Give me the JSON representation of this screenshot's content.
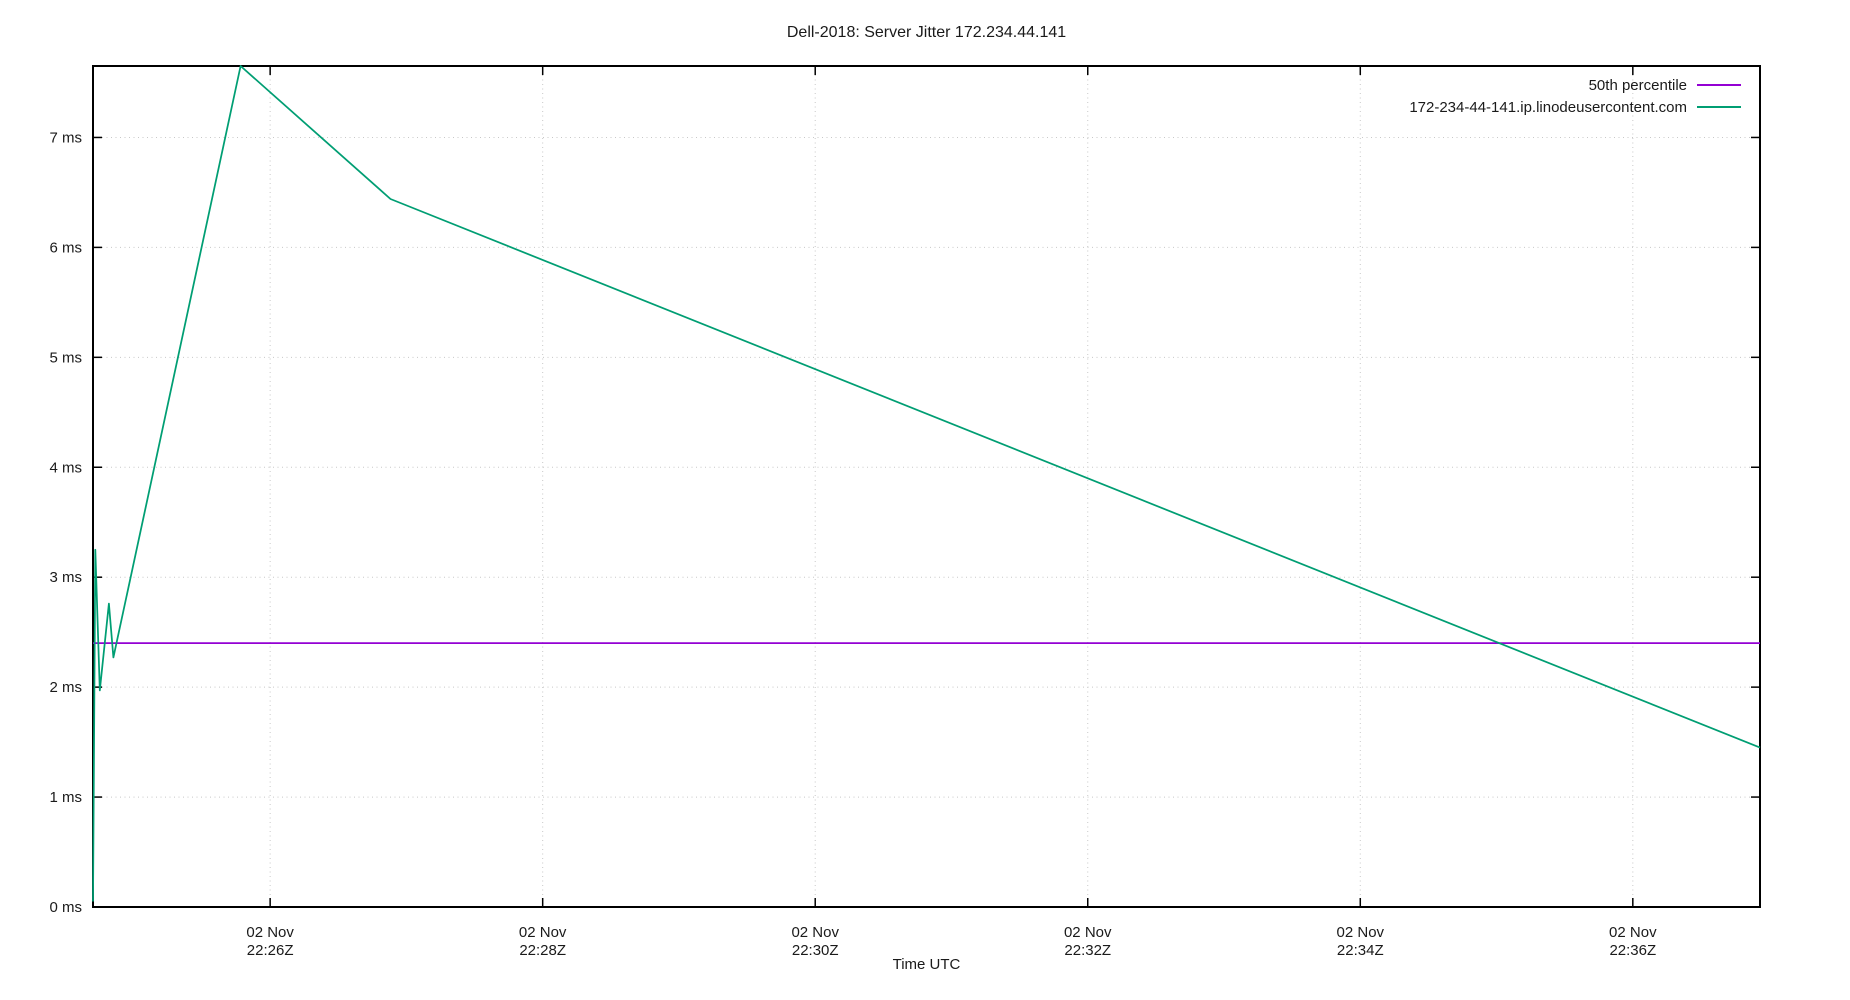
{
  "chart_data": {
    "type": "line",
    "title": "Dell-2018: Server Jitter 172.234.44.141",
    "xlabel": "Time UTC",
    "grid": true,
    "legend_position": "top-right-inside",
    "x_axis": {
      "start": "22:24:42",
      "end": "22:36:56",
      "ticks": [
        {
          "time": "22:26:00",
          "label_line1": "02 Nov",
          "label_line2": "22:26Z"
        },
        {
          "time": "22:28:00",
          "label_line1": "02 Nov",
          "label_line2": "22:28Z"
        },
        {
          "time": "22:30:00",
          "label_line1": "02 Nov",
          "label_line2": "22:30Z"
        },
        {
          "time": "22:32:00",
          "label_line1": "02 Nov",
          "label_line2": "22:32Z"
        },
        {
          "time": "22:34:00",
          "label_line1": "02 Nov",
          "label_line2": "22:34Z"
        },
        {
          "time": "22:36:00",
          "label_line1": "02 Nov",
          "label_line2": "22:36Z"
        }
      ]
    },
    "y_axis": {
      "min": 0,
      "max": 7.65,
      "unit": "ms",
      "ticks": [
        {
          "value": 0,
          "label": "0 ms"
        },
        {
          "value": 1,
          "label": "1 ms"
        },
        {
          "value": 2,
          "label": "2 ms"
        },
        {
          "value": 3,
          "label": "3 ms"
        },
        {
          "value": 4,
          "label": "4 ms"
        },
        {
          "value": 5,
          "label": "5 ms"
        },
        {
          "value": 6,
          "label": "6 ms"
        },
        {
          "value": 7,
          "label": "7 ms"
        }
      ]
    },
    "series": [
      {
        "name": "50th percentile",
        "color": "#9400d3",
        "style": "constant",
        "value_ms": 2.4
      },
      {
        "name": "172-234-44-141.ip.linodeusercontent.com",
        "color": "#009e73",
        "style": "segments",
        "points": [
          {
            "t": "22:24:42",
            "ms": 0.05
          },
          {
            "t": "22:24:43",
            "ms": 3.25
          },
          {
            "t": "22:24:45",
            "ms": 1.97
          },
          {
            "t": "22:24:49",
            "ms": 2.76
          },
          {
            "t": "22:24:51",
            "ms": 2.27
          },
          {
            "t": "22:25:47",
            "ms": 7.65
          },
          {
            "t": "22:26:53",
            "ms": 6.44
          },
          {
            "t": "22:36:56",
            "ms": 1.45
          }
        ]
      }
    ],
    "colors": {
      "background": "#ffffff",
      "border": "#000000",
      "grid": "#c8c8c8",
      "text": "#1a1a1a",
      "percentile_line": "#9400d3",
      "host_line": "#009e73"
    }
  }
}
